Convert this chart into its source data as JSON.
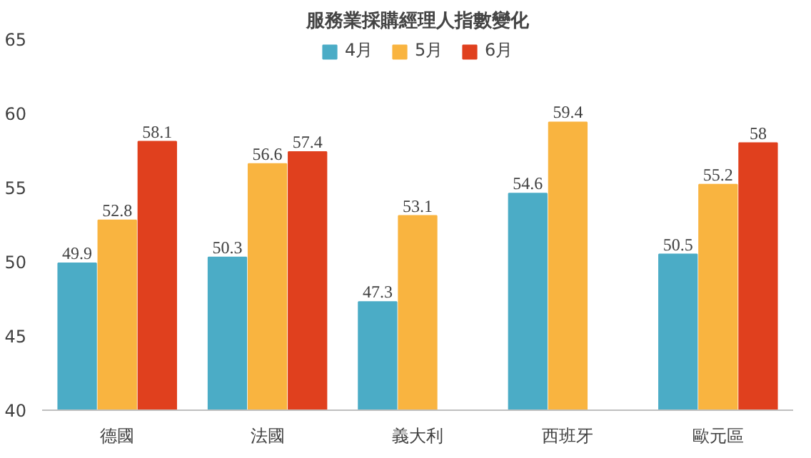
{
  "chart_data": {
    "type": "bar",
    "title": "服務業採購經理人指數變化",
    "categories": [
      "德國",
      "法國",
      "義大利",
      "西班牙",
      "歐元區"
    ],
    "series": [
      {
        "name": "4月",
        "color": "#4bacc6",
        "values": [
          49.9,
          50.3,
          47.3,
          54.6,
          50.5
        ]
      },
      {
        "name": "5月",
        "color": "#f9b440",
        "values": [
          52.8,
          56.6,
          53.1,
          59.4,
          55.2
        ]
      },
      {
        "name": "6月",
        "color": "#e0401e",
        "values": [
          58.1,
          57.4,
          null,
          null,
          58
        ]
      }
    ],
    "ylim": [
      40,
      65
    ],
    "yticks": [
      40,
      45,
      50,
      55,
      60,
      65
    ],
    "grid": false,
    "legend": "top",
    "data_labels": true
  }
}
